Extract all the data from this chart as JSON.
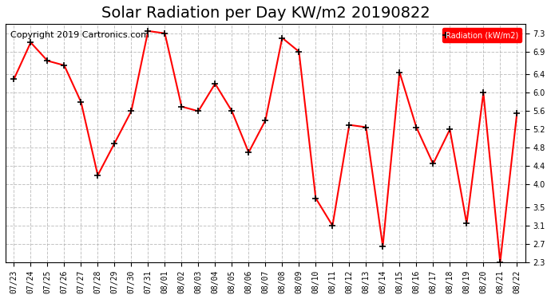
{
  "title": "Solar Radiation per Day KW/m2 20190822",
  "copyright": "Copyright 2019 Cartronics.com",
  "legend_label": "Radiation (kW/m2)",
  "dates": [
    "07/23",
    "07/24",
    "07/25",
    "07/26",
    "07/27",
    "07/28",
    "07/29",
    "07/30",
    "07/31",
    "08/01",
    "08/02",
    "08/03",
    "08/04",
    "08/05",
    "08/06",
    "08/07",
    "08/08",
    "08/09",
    "08/10",
    "08/11",
    "08/12",
    "08/13",
    "08/14",
    "08/15",
    "08/16",
    "08/17",
    "08/18",
    "08/19",
    "08/20",
    "08/21",
    "08/22"
  ],
  "values": [
    6.3,
    7.1,
    6.7,
    6.6,
    5.8,
    4.2,
    4.9,
    5.6,
    7.35,
    7.3,
    5.7,
    5.6,
    6.2,
    5.6,
    4.7,
    5.4,
    7.2,
    6.9,
    3.7,
    3.1,
    5.3,
    5.25,
    2.65,
    6.45,
    5.25,
    4.45,
    5.2,
    3.15,
    6.0,
    2.3,
    5.55
  ],
  "line_color": "red",
  "marker_color": "black",
  "marker": "+",
  "line_width": 1.5,
  "ylim": [
    2.3,
    7.5
  ],
  "yticks": [
    2.3,
    2.7,
    3.1,
    3.5,
    4.0,
    4.4,
    4.8,
    5.2,
    5.6,
    6.0,
    6.4,
    6.9,
    7.3
  ],
  "background_color": "white",
  "plot_bg_color": "white",
  "legend_bg_color": "red",
  "legend_text_color": "white",
  "title_fontsize": 14,
  "copyright_fontsize": 8,
  "tick_fontsize": 7,
  "grid_color": "#aaaaaa",
  "grid_style": "--"
}
